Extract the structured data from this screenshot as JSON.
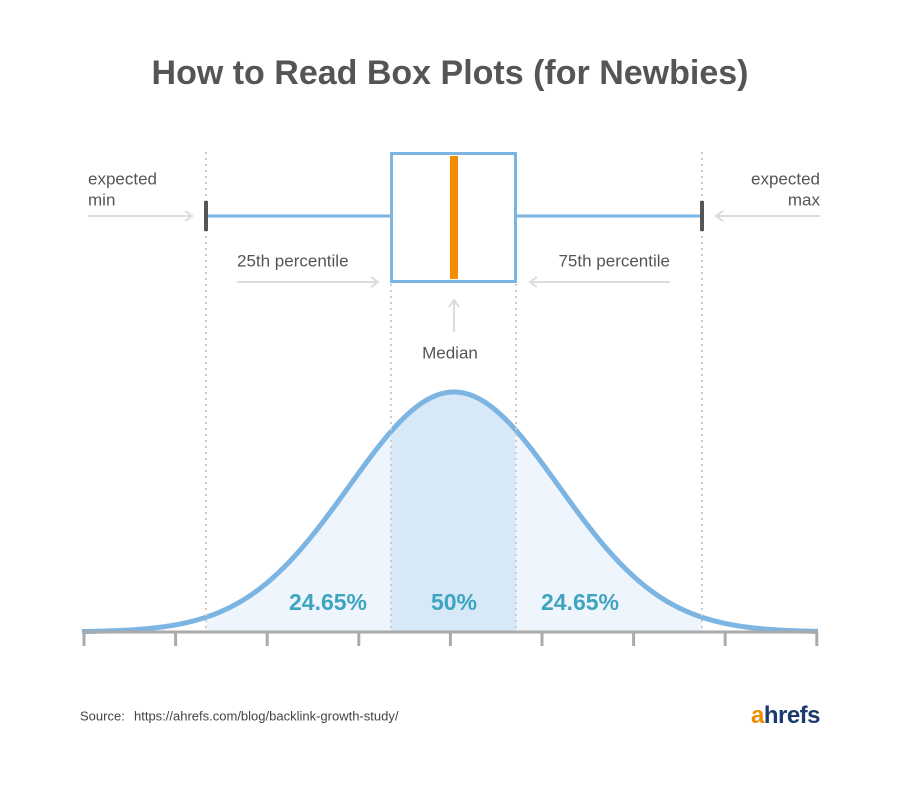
{
  "title": "How to Read Box Plots (for Newbies)",
  "labels": {
    "expected_min": [
      "expected",
      "min"
    ],
    "expected_max": [
      "expected",
      "max"
    ],
    "q1": "25th percentile",
    "q3": "75th percentile",
    "median": "Median"
  },
  "shares": {
    "left": "24.65%",
    "middle": "50%",
    "right": "24.65%"
  },
  "source": {
    "label": "Source:",
    "url": "https://ahrefs.com/blog/backlink-growth-study/"
  },
  "logo": "ahrefs"
}
